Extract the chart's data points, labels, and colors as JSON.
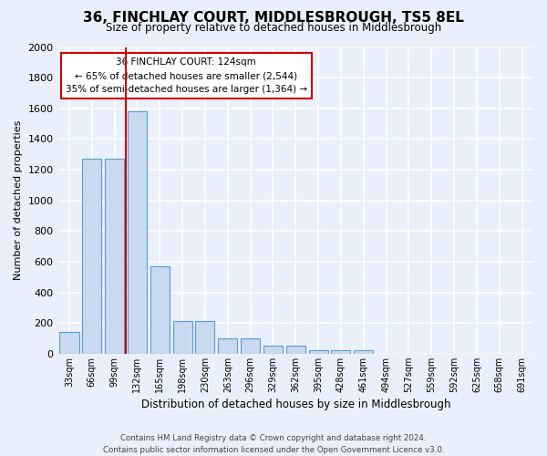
{
  "title": "36, FINCHLAY COURT, MIDDLESBROUGH, TS5 8EL",
  "subtitle": "Size of property relative to detached houses in Middlesbrough",
  "xlabel": "Distribution of detached houses by size in Middlesbrough",
  "ylabel": "Number of detached properties",
  "bin_labels": [
    "33sqm",
    "66sqm",
    "99sqm",
    "132sqm",
    "165sqm",
    "198sqm",
    "230sqm",
    "263sqm",
    "296sqm",
    "329sqm",
    "362sqm",
    "395sqm",
    "428sqm",
    "461sqm",
    "494sqm",
    "527sqm",
    "559sqm",
    "592sqm",
    "625sqm",
    "658sqm",
    "691sqm"
  ],
  "bar_values": [
    140,
    1270,
    1270,
    1580,
    570,
    210,
    210,
    100,
    100,
    50,
    50,
    25,
    25,
    25,
    0,
    0,
    0,
    0,
    0,
    0,
    0
  ],
  "bar_color": "#c9d9f0",
  "bar_edge_color": "#5b9bd5",
  "vline_color": "#cc0000",
  "vline_bin": 2.5,
  "annotation_line1": "36 FINCHLAY COURT: 124sqm",
  "annotation_line2": "← 65% of detached houses are smaller (2,544)",
  "annotation_line3": "35% of semi-detached houses are larger (1,364) →",
  "ylim_max": 2000,
  "yticks": [
    0,
    200,
    400,
    600,
    800,
    1000,
    1200,
    1400,
    1600,
    1800,
    2000
  ],
  "footer_line1": "Contains HM Land Registry data © Crown copyright and database right 2024.",
  "footer_line2": "Contains public sector information licensed under the Open Government Licence v3.0.",
  "bg_color": "#eaf0fb",
  "grid_color": "#ffffff"
}
